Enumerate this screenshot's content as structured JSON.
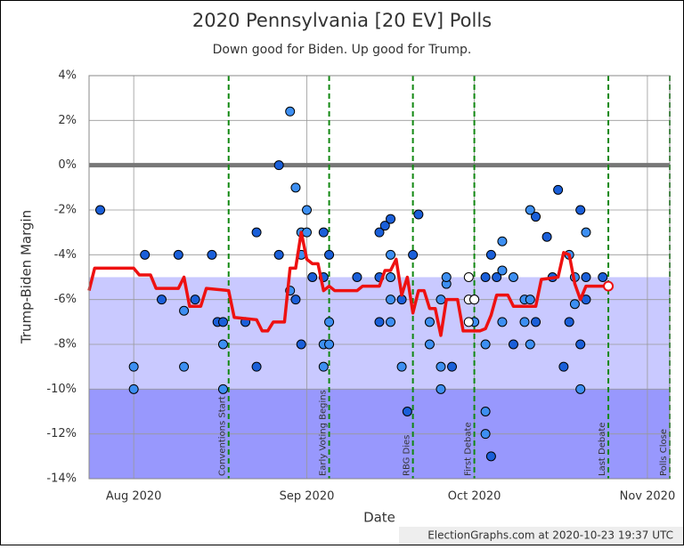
{
  "chart_data": {
    "type": "scatter",
    "title": "2020 Pennsylvania [20 EV] Polls",
    "subtitle": "Down good for Biden. Up good for Trump.",
    "x_label": "Date",
    "y_label": "Trump-Biden Margin",
    "footer": "ElectionGraphs.com at 2020-10-23 19:37 UTC",
    "xlim": [
      "2020-07-24",
      "2020-11-05"
    ],
    "xticks": [
      {
        "value": "2020-08-01",
        "label": "Aug 2020"
      },
      {
        "value": "2020-09-01",
        "label": "Sep 2020"
      },
      {
        "value": "2020-10-01",
        "label": "Oct 2020"
      },
      {
        "value": "2020-11-01",
        "label": "Nov 2020"
      }
    ],
    "ylim": [
      -14,
      4
    ],
    "yticks": [
      {
        "value": -14,
        "label": "-14%"
      },
      {
        "value": -12,
        "label": "-12%"
      },
      {
        "value": -10,
        "label": "-10%"
      },
      {
        "value": -8,
        "label": "-8%"
      },
      {
        "value": -6,
        "label": "-6%"
      },
      {
        "value": -4,
        "label": "-4%"
      },
      {
        "value": -2,
        "label": "-2%"
      },
      {
        "value": 0,
        "label": "0%"
      },
      {
        "value": 2,
        "label": "2%"
      },
      {
        "value": 4,
        "label": "4%"
      }
    ],
    "grid": true,
    "bands": [
      {
        "from": -5,
        "to": -10,
        "color": "#c9c9ff"
      },
      {
        "from": -10,
        "to": -14,
        "color": "#9898fd"
      }
    ],
    "reference_line": 0,
    "events": [
      {
        "x": "2020-08-18",
        "label": "Conventions Start"
      },
      {
        "x": "2020-09-05",
        "label": "Early Voting Begins"
      },
      {
        "x": "2020-09-20",
        "label": "RBG Dies"
      },
      {
        "x": "2020-10-01",
        "label": "First Debate"
      },
      {
        "x": "2020-10-25",
        "label": "Last Debate"
      },
      {
        "x": "2020-11-05",
        "label": "Polls Close"
      }
    ],
    "points": [
      {
        "color": "#1a5fd9",
        "x": [
          "2020-07-26",
          "2020-08-03",
          "2020-08-06",
          "2020-08-09",
          "2020-08-12",
          "2020-08-15",
          "2020-08-16",
          "2020-08-17",
          "2020-08-21",
          "2020-08-23",
          "2020-08-23",
          "2020-08-27",
          "2020-08-27",
          "2020-08-30",
          "2020-08-31",
          "2020-09-02",
          "2020-09-04",
          "2020-09-04",
          "2020-09-05",
          "2020-09-10",
          "2020-09-14",
          "2020-09-14",
          "2020-09-14",
          "2020-09-15",
          "2020-09-16",
          "2020-09-18",
          "2020-09-19",
          "2020-09-20",
          "2020-09-21",
          "2020-09-27",
          "2020-10-03",
          "2020-10-04",
          "2020-10-04",
          "2020-10-05",
          "2020-10-08",
          "2020-10-12",
          "2020-10-12",
          "2020-10-14",
          "2020-10-15",
          "2020-10-16",
          "2020-10-17",
          "2020-10-18",
          "2020-10-20",
          "2020-10-20",
          "2020-10-21",
          "2020-10-21",
          "2020-10-24"
        ],
        "values": [
          -2,
          -4,
          -6,
          -4,
          -6,
          -4,
          -7,
          -7,
          -7,
          -3,
          -9,
          -4,
          0,
          -6,
          -8,
          -5,
          -3,
          -5,
          -4,
          -5,
          -5,
          -7,
          -3,
          -2.7,
          -2.4,
          -6,
          -11,
          -4,
          -2.2,
          -9,
          -5,
          -13,
          -4,
          -5,
          -8,
          -7,
          -2.3,
          -3.2,
          -5,
          -1.1,
          -9,
          -7,
          -2,
          -8,
          -5,
          -6,
          -5
        ]
      },
      {
        "color": "#3d8ff2",
        "x": [
          "2020-08-01",
          "2020-08-01",
          "2020-08-10",
          "2020-08-10",
          "2020-08-17",
          "2020-08-17",
          "2020-08-29",
          "2020-08-29",
          "2020-08-30",
          "2020-08-31",
          "2020-08-31",
          "2020-09-01",
          "2020-09-01",
          "2020-09-04",
          "2020-09-04",
          "2020-09-05",
          "2020-09-05",
          "2020-09-16",
          "2020-09-16",
          "2020-09-16",
          "2020-09-16",
          "2020-09-18",
          "2020-09-23",
          "2020-09-23",
          "2020-09-25",
          "2020-09-25",
          "2020-09-25",
          "2020-09-26",
          "2020-09-26",
          "2020-10-01",
          "2020-10-03",
          "2020-10-03",
          "2020-10-03",
          "2020-10-06",
          "2020-10-06",
          "2020-10-06",
          "2020-10-08",
          "2020-10-10",
          "2020-10-10",
          "2020-10-11",
          "2020-10-11",
          "2020-10-11",
          "2020-10-18",
          "2020-10-19",
          "2020-10-19",
          "2020-10-20",
          "2020-10-21"
        ],
        "values": [
          -9,
          -10,
          -6.5,
          -9,
          -8,
          -10,
          2.4,
          -5.6,
          -1,
          -3,
          -4,
          -2,
          -3,
          -9,
          -8,
          -7,
          -8,
          -4,
          -5,
          -6,
          -7,
          -9,
          -8,
          -7,
          -10,
          -9,
          -6,
          -5.3,
          -5,
          -7,
          -11,
          -12,
          -8,
          -3.4,
          -4.7,
          -7,
          -5,
          -7,
          -6,
          -2,
          -8,
          -6,
          -4,
          -6.2,
          -5,
          -10,
          -3
        ]
      },
      {
        "color": "#ffffff",
        "x": [
          "2020-09-30",
          "2020-09-30",
          "2020-09-30",
          "2020-10-01",
          "2020-10-01"
        ],
        "values": [
          -5,
          -6,
          -7,
          -6,
          -6
        ]
      }
    ],
    "average": {
      "color": "#ee1111",
      "x": [
        "2020-07-24",
        "2020-07-25",
        "2020-08-01",
        "2020-08-02",
        "2020-08-04",
        "2020-08-05",
        "2020-08-09",
        "2020-08-10",
        "2020-08-11",
        "2020-08-13",
        "2020-08-14",
        "2020-08-18",
        "2020-08-19",
        "2020-08-23",
        "2020-08-24",
        "2020-08-25",
        "2020-08-26",
        "2020-08-28",
        "2020-08-29",
        "2020-08-30",
        "2020-08-31",
        "2020-09-01",
        "2020-09-02",
        "2020-09-03",
        "2020-09-04",
        "2020-09-05",
        "2020-09-06",
        "2020-09-10",
        "2020-09-11",
        "2020-09-14",
        "2020-09-15",
        "2020-09-16",
        "2020-09-17",
        "2020-09-18",
        "2020-09-19",
        "2020-09-20",
        "2020-09-21",
        "2020-09-22",
        "2020-09-23",
        "2020-09-24",
        "2020-09-25",
        "2020-09-26",
        "2020-09-28",
        "2020-09-29",
        "2020-10-02",
        "2020-10-03",
        "2020-10-04",
        "2020-10-05",
        "2020-10-07",
        "2020-10-08",
        "2020-10-12",
        "2020-10-13",
        "2020-10-16",
        "2020-10-17",
        "2020-10-18",
        "2020-10-19",
        "2020-10-20",
        "2020-10-21",
        "2020-10-25"
      ],
      "values": [
        -5.6,
        -4.6,
        -4.6,
        -4.9,
        -4.9,
        -5.5,
        -5.5,
        -5.0,
        -6.3,
        -6.3,
        -5.5,
        -5.6,
        -6.8,
        -6.9,
        -7.4,
        -7.4,
        -7.0,
        -7.0,
        -4.6,
        -4.6,
        -3.0,
        -4.2,
        -4.4,
        -4.4,
        -5.6,
        -5.4,
        -5.6,
        -5.6,
        -5.4,
        -5.4,
        -4.7,
        -4.7,
        -4.2,
        -5.8,
        -5.0,
        -6.6,
        -5.6,
        -5.6,
        -6.4,
        -6.4,
        -7.6,
        -6.0,
        -6.0,
        -7.4,
        -7.4,
        -7.3,
        -6.7,
        -5.8,
        -5.8,
        -6.3,
        -6.3,
        -5.1,
        -5.0,
        -3.9,
        -4.0,
        -5.3,
        -6.0,
        -5.4,
        -5.4
      ]
    }
  }
}
